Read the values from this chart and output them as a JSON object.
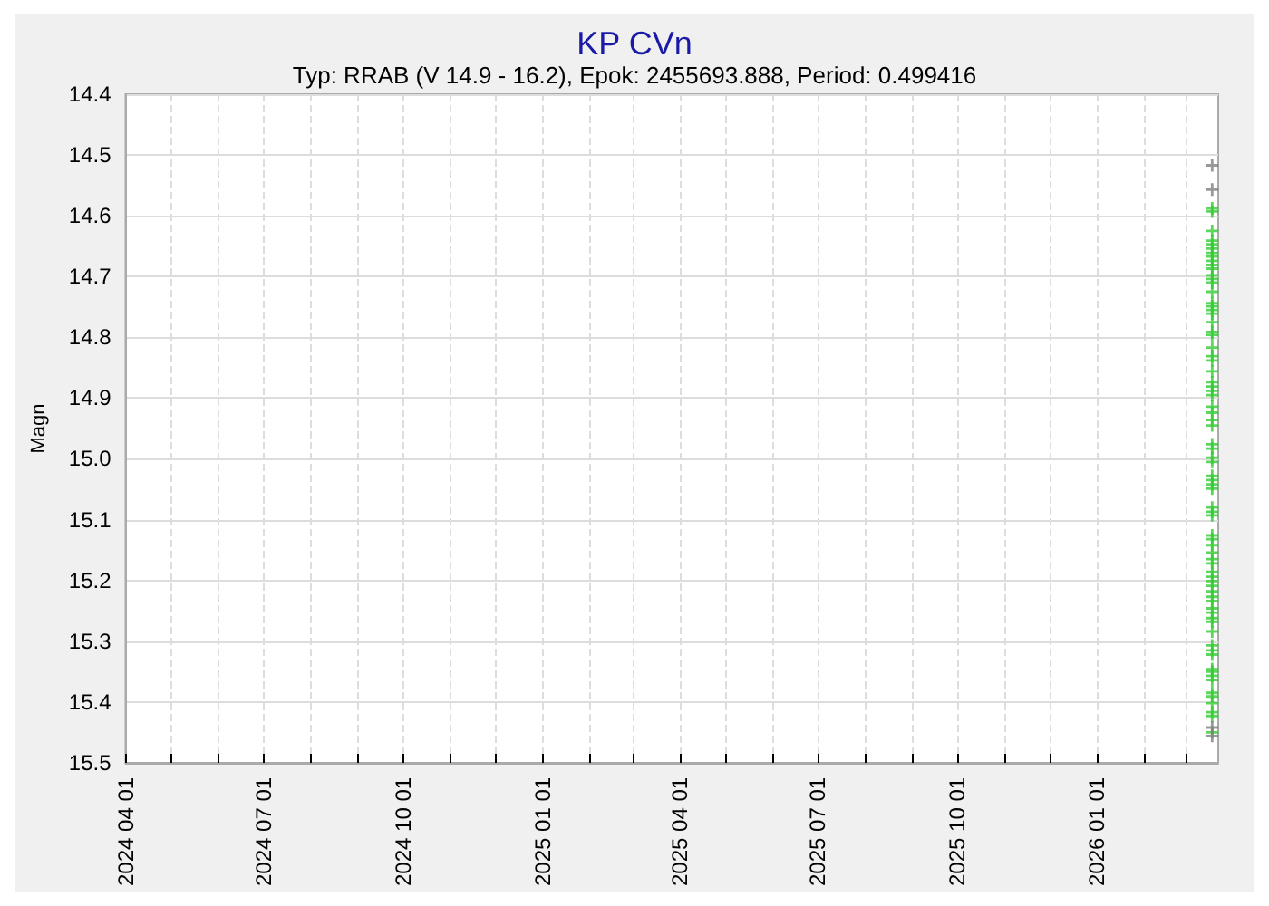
{
  "chart_data": {
    "type": "scatter",
    "title": "KP CVn",
    "subtitle": "Typ: RRAB (V 14.9 - 16.2), Epok: 2455693.888, Period: 0.499416",
    "ylabel": "Magn",
    "marker": "cross",
    "grid": true,
    "xlim": [
      "2024-04-01",
      "2026-03-22"
    ],
    "xticks": [
      {
        "value": "2024-04-01",
        "label": "2024 04 01"
      },
      {
        "value": "2024-05-01",
        "label": null
      },
      {
        "value": "2024-06-01",
        "label": null
      },
      {
        "value": "2024-07-01",
        "label": "2024 07 01"
      },
      {
        "value": "2024-08-01",
        "label": null
      },
      {
        "value": "2024-09-01",
        "label": null
      },
      {
        "value": "2024-10-01",
        "label": "2024 10 01"
      },
      {
        "value": "2024-11-01",
        "label": null
      },
      {
        "value": "2024-12-01",
        "label": null
      },
      {
        "value": "2025-01-01",
        "label": "2025 01 01"
      },
      {
        "value": "2025-02-01",
        "label": null
      },
      {
        "value": "2025-03-01",
        "label": null
      },
      {
        "value": "2025-04-01",
        "label": "2025 04 01"
      },
      {
        "value": "2025-05-01",
        "label": null
      },
      {
        "value": "2025-06-01",
        "label": null
      },
      {
        "value": "2025-07-01",
        "label": "2025 07 01"
      },
      {
        "value": "2025-08-01",
        "label": null
      },
      {
        "value": "2025-09-01",
        "label": null
      },
      {
        "value": "2025-10-01",
        "label": "2025 10 01"
      },
      {
        "value": "2025-11-01",
        "label": null
      },
      {
        "value": "2025-12-01",
        "label": null
      },
      {
        "value": "2026-01-01",
        "label": "2026 01 01"
      },
      {
        "value": "2026-02-01",
        "label": null
      },
      {
        "value": "2026-03-01",
        "label": null
      }
    ],
    "ylim": [
      15.5,
      14.4
    ],
    "yticks": [
      14.4,
      14.5,
      14.6,
      14.7,
      14.8,
      14.9,
      {
        "value": 15,
        "label": "15.0"
      },
      15.1,
      15.2,
      15.3,
      15.4,
      15.5
    ],
    "series": [
      {
        "color": "#808080",
        "x": [
          "2026-03-18",
          "2026-03-18",
          "2026-03-18",
          "2026-03-18"
        ],
        "values": [
          14.517,
          14.557,
          15.442,
          15.456
        ]
      },
      {
        "color": "#33cc33",
        "x": [
          "2026-03-18",
          "2026-03-18",
          "2026-03-18",
          "2026-03-18",
          "2026-03-18",
          "2026-03-18",
          "2026-03-18",
          "2026-03-18",
          "2026-03-18",
          "2026-03-18",
          "2026-03-18",
          "2026-03-18",
          "2026-03-18",
          "2026-03-18",
          "2026-03-18",
          "2026-03-18",
          "2026-03-18",
          "2026-03-18",
          "2026-03-18",
          "2026-03-18",
          "2026-03-18",
          "2026-03-18",
          "2026-03-18",
          "2026-03-18",
          "2026-03-18",
          "2026-03-18",
          "2026-03-18",
          "2026-03-18",
          "2026-03-18",
          "2026-03-18",
          "2026-03-18",
          "2026-03-18",
          "2026-03-18",
          "2026-03-18",
          "2026-03-18",
          "2026-03-18",
          "2026-03-18",
          "2026-03-18",
          "2026-03-18",
          "2026-03-18",
          "2026-03-18",
          "2026-03-18",
          "2026-03-18",
          "2026-03-18",
          "2026-03-18",
          "2026-03-18",
          "2026-03-18",
          "2026-03-18",
          "2026-03-18",
          "2026-03-18",
          "2026-03-18",
          "2026-03-18",
          "2026-03-18",
          "2026-03-18",
          "2026-03-18",
          "2026-03-18",
          "2026-03-18",
          "2026-03-18",
          "2026-03-18",
          "2026-03-18",
          "2026-03-18",
          "2026-03-18",
          "2026-03-18",
          "2026-03-18",
          "2026-03-18",
          "2026-03-18",
          "2026-03-18",
          "2026-03-18",
          "2026-03-18",
          "2026-03-18",
          "2026-03-18",
          "2026-03-18",
          "2026-03-18",
          "2026-03-18",
          "2026-03-18",
          "2026-03-18"
        ],
        "values": [
          14.588,
          14.593,
          14.625,
          14.641,
          14.647,
          14.654,
          14.661,
          14.667,
          14.674,
          14.681,
          14.687,
          14.698,
          14.704,
          14.71,
          14.725,
          14.744,
          14.749,
          14.755,
          14.761,
          14.775,
          14.791,
          14.796,
          14.817,
          14.831,
          14.838,
          14.856,
          14.874,
          14.881,
          14.888,
          14.895,
          14.914,
          14.924,
          14.936,
          14.945,
          14.976,
          14.983,
          14.998,
          15.005,
          15.028,
          15.035,
          15.042,
          15.049,
          15.08,
          15.087,
          15.093,
          15.126,
          15.132,
          15.142,
          15.154,
          15.165,
          15.172,
          15.186,
          15.194,
          15.201,
          15.209,
          15.218,
          15.227,
          15.234,
          15.246,
          15.253,
          15.262,
          15.268,
          15.284,
          15.307,
          15.315,
          15.322,
          15.346,
          15.35,
          15.357,
          15.364,
          15.385,
          15.391,
          15.402,
          15.417,
          15.423,
          15.45
        ]
      }
    ]
  }
}
